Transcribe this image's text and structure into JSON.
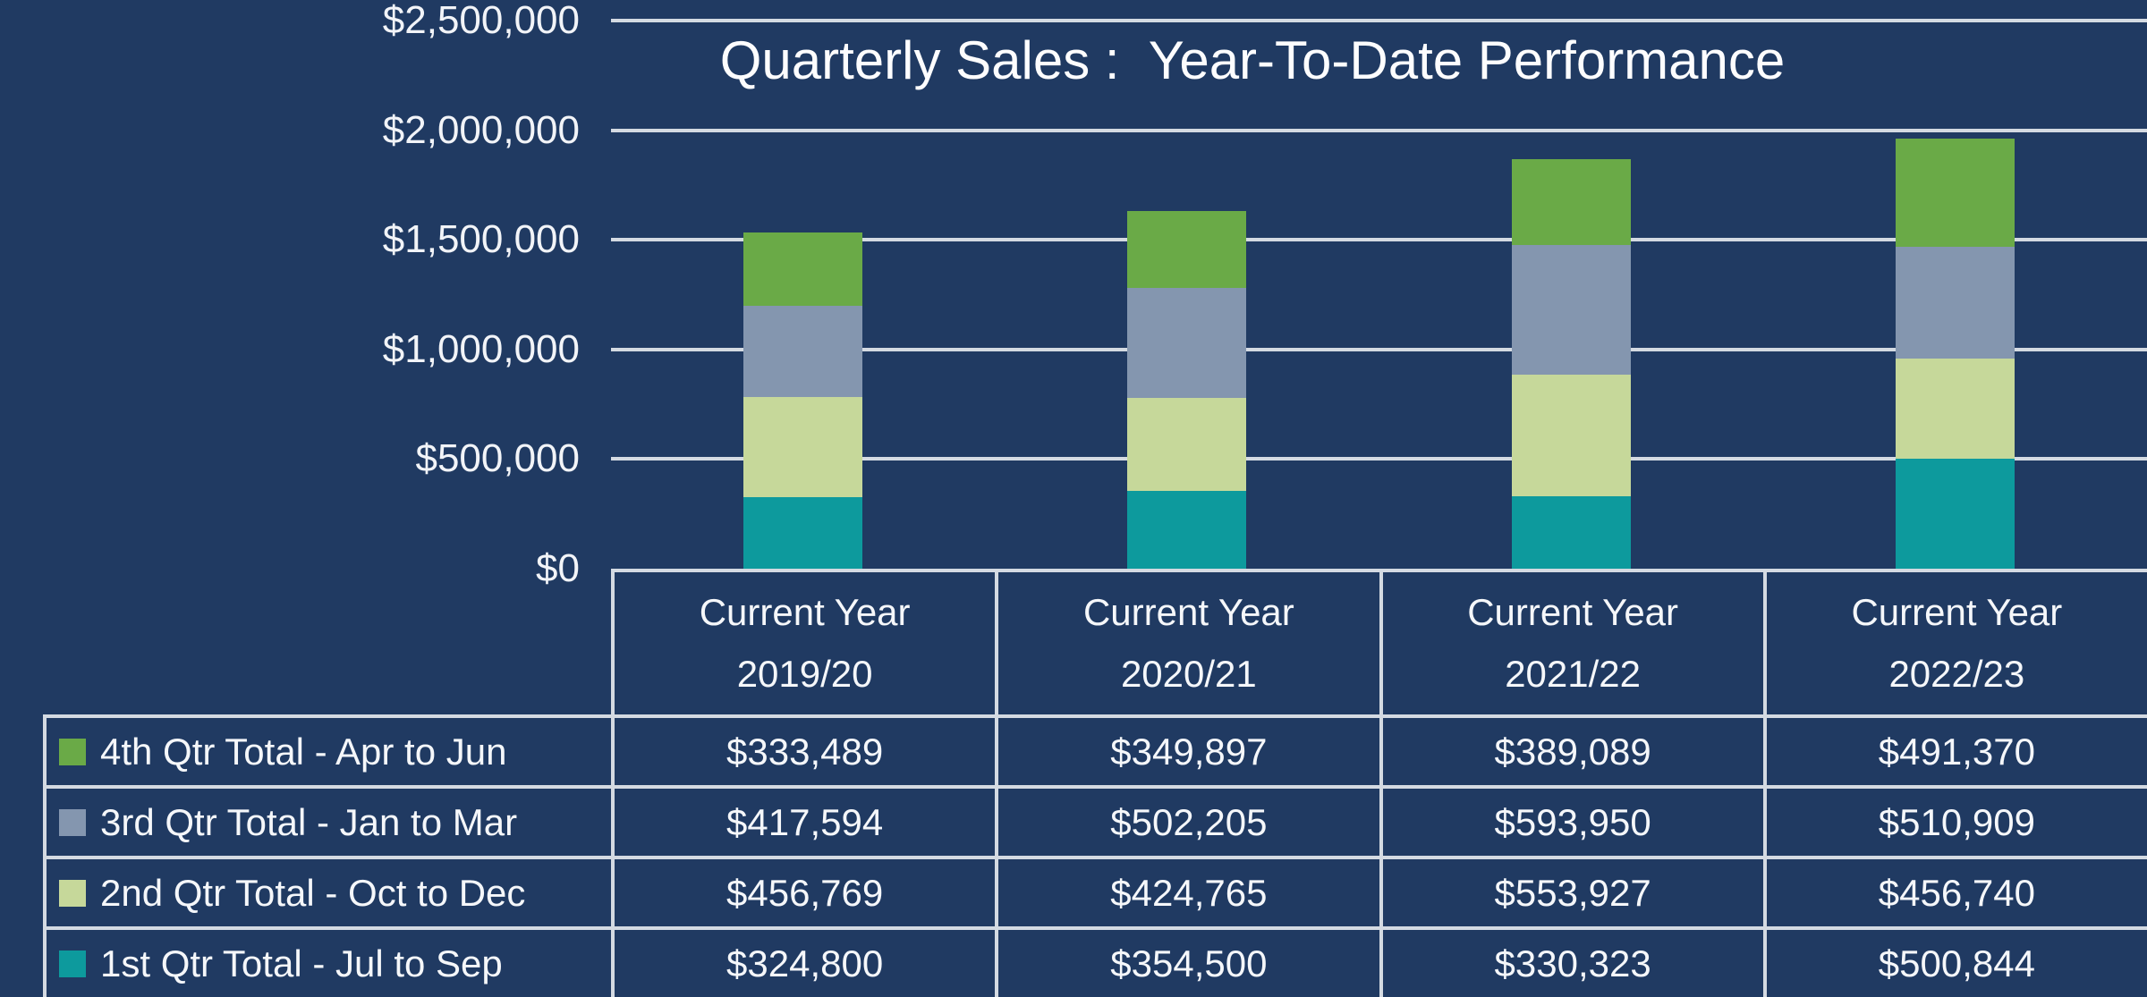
{
  "colors": {
    "background": "#203A62",
    "grid_border": "#D4DAE2",
    "text": "#FFFFFF"
  },
  "chart_data": {
    "type": "bar",
    "stacked": true,
    "title": "Quarterly Sales :  Year-To-Date Performance",
    "legend_position": "left-table-column",
    "grid": true,
    "y_axis": {
      "min": 0,
      "max": 2500000,
      "tick_labels": [
        "$2,500,000",
        "$2,000,000",
        "$1,500,000",
        "$1,000,000",
        "$500,000",
        "$0"
      ]
    },
    "categories": [
      {
        "line1": "Current Year",
        "line2": "2019/20"
      },
      {
        "line1": "Current Year",
        "line2": "2020/21"
      },
      {
        "line1": "Current Year",
        "line2": "2021/22"
      },
      {
        "line1": "Current Year",
        "line2": "2022/23"
      }
    ],
    "series": [
      {
        "name": "4th Qtr Total - Apr to Jun",
        "color": "#6AAA47",
        "values": [
          333489,
          349897,
          389089,
          491370
        ],
        "formatted": [
          "$333,489",
          "$349,897",
          "$389,089",
          "$491,370"
        ]
      },
      {
        "name": "3rd Qtr Total - Jan to Mar",
        "color": "#8496AF",
        "values": [
          417594,
          502205,
          593950,
          510909
        ],
        "formatted": [
          "$417,594",
          "$502,205",
          "$593,950",
          "$510,909"
        ]
      },
      {
        "name": "2nd Qtr Total - Oct to Dec",
        "color": "#C6D89A",
        "values": [
          456769,
          424765,
          553927,
          456740
        ],
        "formatted": [
          "$456,769",
          "$424,765",
          "$553,927",
          "$456,740"
        ]
      },
      {
        "name": "1st Qtr Total - Jul to Sep",
        "color": "#0D9A9D",
        "values": [
          324800,
          354500,
          330323,
          500844
        ],
        "formatted": [
          "$324,800",
          "$354,500",
          "$330,323",
          "$500,844"
        ]
      }
    ],
    "series_order_note": "series listed top-to-bottom as stacked in bars and as shown in table rows"
  }
}
